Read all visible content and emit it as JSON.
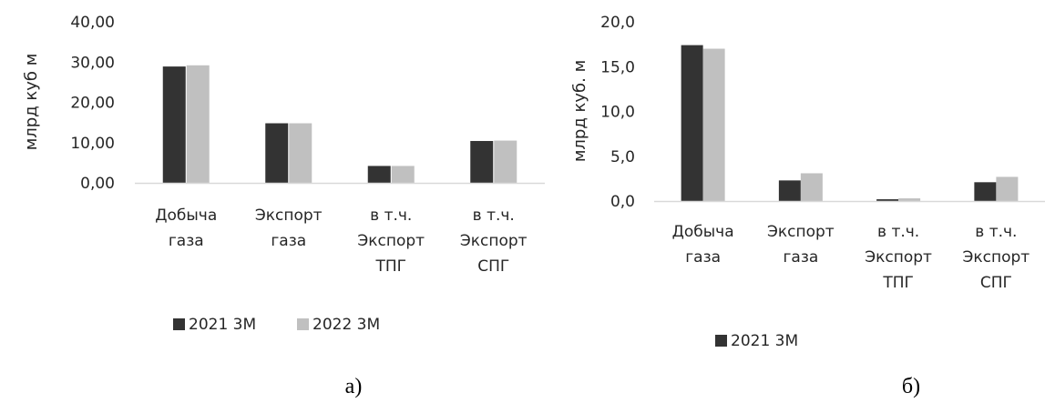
{
  "chart_data": [
    {
      "type": "bar",
      "panel_label": "а)",
      "ylabel": "млрд куб м",
      "ylim": [
        0,
        40
      ],
      "y_ticks": [
        "0,00",
        "10,00",
        "20,00",
        "30,00",
        "40,00"
      ],
      "categories": [
        [
          "Добыча",
          "газа"
        ],
        [
          "Экспорт",
          "газа"
        ],
        [
          "в т.ч.",
          "Экспорт",
          "ТПГ"
        ],
        [
          "в т.ч.",
          "Экспорт",
          "СПГ"
        ]
      ],
      "series": [
        {
          "name": "2021 3М",
          "color": "#333333",
          "values": [
            28.9,
            14.8,
            4.2,
            10.4
          ]
        },
        {
          "name": "2022 3М",
          "color": "#c0c0c0",
          "values": [
            29.2,
            14.8,
            4.2,
            10.5
          ]
        }
      ],
      "legend_position": "bottom"
    },
    {
      "type": "bar",
      "panel_label": "б)",
      "ylabel": "млрд куб. м",
      "ylim": [
        0,
        20
      ],
      "y_ticks": [
        "0,0",
        "5,0",
        "10,0",
        "15,0",
        "20,0"
      ],
      "categories": [
        [
          "Добыча",
          "газа"
        ],
        [
          "Экспорт",
          "газа"
        ],
        [
          "в т.ч.",
          "Экспорт",
          "ТПГ"
        ],
        [
          "в т.ч.",
          "Экспорт",
          "СПГ"
        ]
      ],
      "series": [
        {
          "name": "2021 3М",
          "color": "#333333",
          "values": [
            17.4,
            2.3,
            0.2,
            2.1
          ],
          "in_legend": true
        },
        {
          "name": "",
          "color": "#c0c0c0",
          "values": [
            17.0,
            3.1,
            0.3,
            2.7
          ],
          "in_legend": false
        }
      ],
      "legend_position": "bottom"
    }
  ]
}
